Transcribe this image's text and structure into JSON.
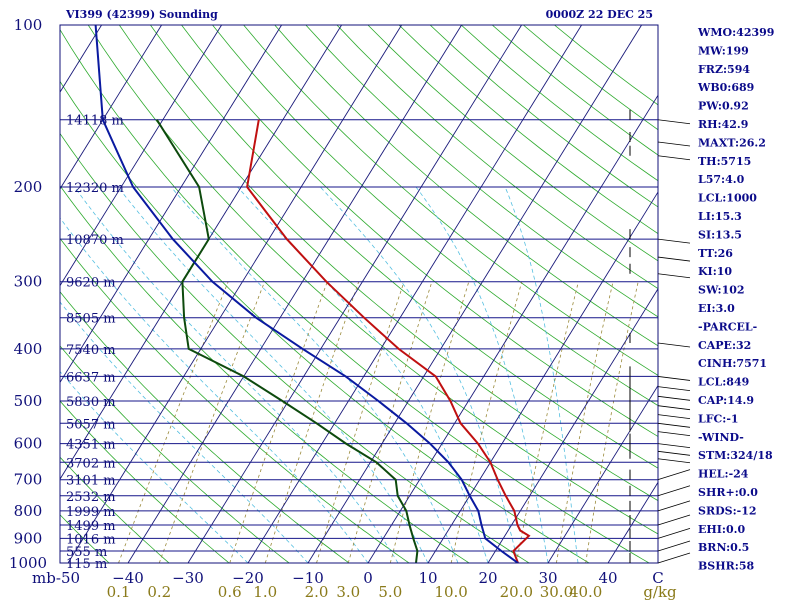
{
  "chart_data": {
    "type": "skew-t",
    "title": "VI399 (42399) Sounding",
    "time": "0000Z 22 DEC 25",
    "pressure_unit": "mb",
    "pressure_ticks": [
      100,
      200,
      300,
      400,
      500,
      600,
      700,
      800,
      900,
      1000
    ],
    "pressure_range": [
      100,
      1000
    ],
    "temperature_ticks": [
      -50,
      -40,
      -30,
      -20,
      -10,
      0,
      10,
      20,
      30,
      40
    ],
    "temperature_tick_labels": [
      "-50",
      "−40",
      "−30",
      "−20",
      "−10",
      "0",
      "10",
      "20",
      "30",
      "40"
    ],
    "temperature_range": [
      -50,
      50
    ],
    "temperature_unit": "C",
    "mixing_ratio_ticks": [
      {
        "label": "0.1",
        "value": 0.1
      },
      {
        "label": "0.2",
        "value": 0.2
      },
      {
        "label": "0.6",
        "value": 0.6
      },
      {
        "label": "1.0",
        "value": 1.0
      },
      {
        "label": "2.0",
        "value": 2.0
      },
      {
        "label": "3.0",
        "value": 3.0
      },
      {
        "label": "5.0",
        "value": 5.0
      },
      {
        "label": "10.0",
        "value": 10.0
      },
      {
        "label": "20.0",
        "value": 20.0
      },
      {
        "label": "30.0",
        "value": 30.0
      },
      {
        "label": "40.0",
        "value": 40.0
      }
    ],
    "mixing_ratio_unit": "g/kg",
    "height_labels": [
      {
        "label": "14118 m",
        "p": 150
      },
      {
        "label": "12320 m",
        "p": 200
      },
      {
        "label": "10870 m",
        "p": 250
      },
      {
        "label": "9620 m",
        "p": 300
      },
      {
        "label": "8505 m",
        "p": 350
      },
      {
        "label": "7540 m",
        "p": 400
      },
      {
        "label": "6637 m",
        "p": 450
      },
      {
        "label": "5830 m",
        "p": 500
      },
      {
        "label": "5057 m",
        "p": 550
      },
      {
        "label": "4351 m",
        "p": 600
      },
      {
        "label": "3702 m",
        "p": 650
      },
      {
        "label": "3101 m",
        "p": 700
      },
      {
        "label": "2532 m",
        "p": 750
      },
      {
        "label": "1999 m",
        "p": 800
      },
      {
        "label": "1499 m",
        "p": 850
      },
      {
        "label": "1016 m",
        "p": 900
      },
      {
        "label": "555 m",
        "p": 950
      },
      {
        "label": "115 m",
        "p": 1000
      }
    ],
    "series": [
      {
        "name": "Temperature",
        "color": "#c01010",
        "points": [
          [
            150,
            -64
          ],
          [
            200,
            -59
          ],
          [
            250,
            -47
          ],
          [
            300,
            -36
          ],
          [
            350,
            -26
          ],
          [
            400,
            -17
          ],
          [
            450,
            -8
          ],
          [
            500,
            -3
          ],
          [
            550,
            1
          ],
          [
            600,
            6
          ],
          [
            650,
            10
          ],
          [
            700,
            13
          ],
          [
            750,
            16
          ],
          [
            800,
            19
          ],
          [
            850,
            21
          ],
          [
            870,
            22
          ],
          [
            890,
            24
          ],
          [
            950,
            23
          ],
          [
            1000,
            25
          ]
        ]
      },
      {
        "name": "Dewpoint",
        "color": "#0d4a0d",
        "points": [
          [
            150,
            -81
          ],
          [
            200,
            -67
          ],
          [
            250,
            -60
          ],
          [
            300,
            -60
          ],
          [
            350,
            -56
          ],
          [
            400,
            -52
          ],
          [
            450,
            -40
          ],
          [
            500,
            -31
          ],
          [
            550,
            -23
          ],
          [
            600,
            -16
          ],
          [
            650,
            -9
          ],
          [
            700,
            -4
          ],
          [
            750,
            -2
          ],
          [
            800,
            1
          ],
          [
            850,
            3
          ],
          [
            900,
            5
          ],
          [
            950,
            7
          ],
          [
            1000,
            8
          ]
        ]
      },
      {
        "name": "Parcel",
        "color": "#0a1aa0",
        "points": [
          [
            100,
            -101
          ],
          [
            150,
            -90
          ],
          [
            200,
            -78
          ],
          [
            250,
            -66
          ],
          [
            300,
            -55
          ],
          [
            350,
            -44
          ],
          [
            400,
            -33
          ],
          [
            450,
            -23
          ],
          [
            500,
            -15
          ],
          [
            550,
            -8
          ],
          [
            600,
            -2
          ],
          [
            650,
            3
          ],
          [
            700,
            7
          ],
          [
            750,
            10
          ],
          [
            800,
            13
          ],
          [
            850,
            15
          ],
          [
            900,
            17
          ],
          [
            950,
            21
          ],
          [
            1000,
            25
          ]
        ]
      }
    ]
  },
  "header": {
    "title": "VI399 (42399) Sounding",
    "time": "0000Z 22 DEC 25"
  },
  "indices": [
    "WMO:42399",
    "MW:199",
    "FRZ:594",
    "WB0:689",
    "PW:0.92",
    "RH:42.9",
    "MAXT:26.2",
    "TH:5715",
    "L57:4.0",
    "LCL:1000",
    "LI:15.3",
    "SI:13.5",
    "TT:26",
    "KI:10",
    "SW:102",
    "EI:3.0",
    "-PARCEL-",
    "CAPE:32",
    "CINH:7571",
    "LCL:849",
    "CAP:14.9",
    "LFC:-1",
    "-WIND-",
    "STM:324/18",
    "HEL:-24",
    "SHR+:0.0",
    "SRDS:-12",
    "EHI:0.0",
    "BRN:0.5",
    "BSHR:58"
  ],
  "colors": {
    "isobar": "#16168a",
    "isotherm": "#1a1a7a",
    "dry_adiabat": "#2eaa2e",
    "moist_adiabat": "#55bfe0",
    "mixing_ratio": "#9a8a3a",
    "temperature": "#c01010",
    "dewpoint": "#0d4a0d",
    "parcel": "#0a1aa0",
    "label_blue": "#10107a",
    "label_olive": "#8a7a1a"
  },
  "icons": {
    "wind_barbs": "wind-barb-icon"
  }
}
